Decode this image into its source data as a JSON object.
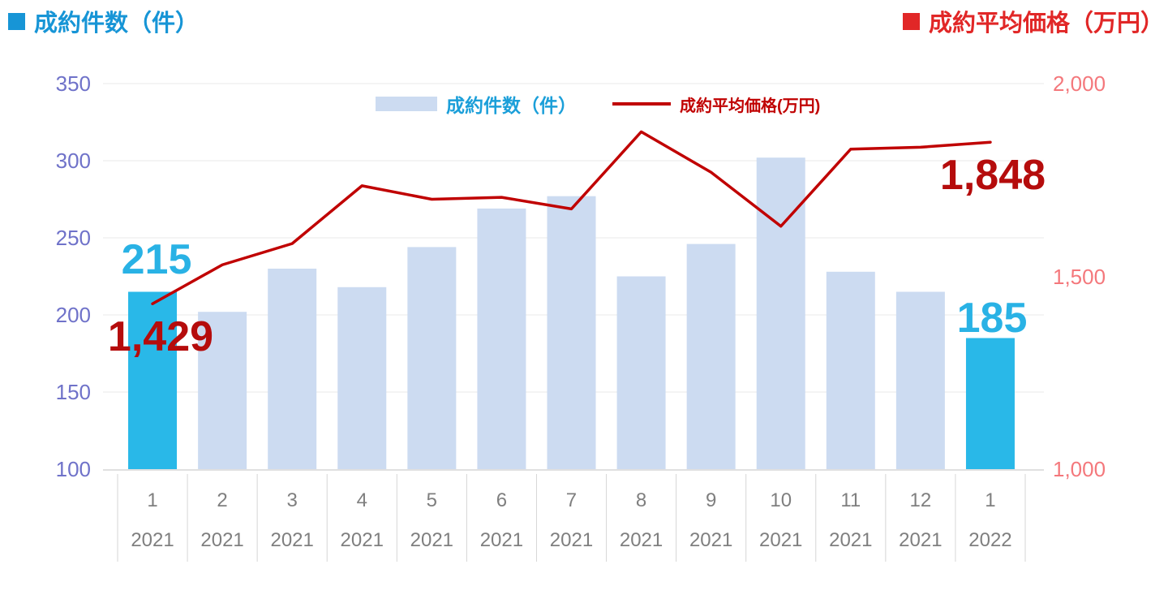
{
  "header": {
    "left_title": "成約件数（件）",
    "right_title": "成約平均価格（万円）"
  },
  "legend": {
    "bar_label": "成約件数（件）",
    "line_label": "成約平均価格(万円)"
  },
  "annotations": {
    "bar_first": "215",
    "line_first": "1,429",
    "bar_last": "185",
    "line_last": "1,848"
  },
  "colors": {
    "bar": "#ccdbf1",
    "bar_highlight": "#29b8e8",
    "line": "#c00000",
    "bar_title": "#1795d6",
    "line_title": "#e12727",
    "legend_bar_text": "#1b9fd9",
    "bar_value_label": "#29b2e5",
    "line_value_label": "#b50c0c",
    "left_axis_text": "#6f72c9",
    "right_axis_text": "#f4787c",
    "x_label": "#7f7f7f",
    "grid": "#e8e8e8",
    "axis_line": "#d6d6d6"
  },
  "chart_data": {
    "type": "combo",
    "title": "成約件数（件）／成約平均価格（万円）",
    "legend_position": "top-center",
    "grid": true,
    "categories": [
      {
        "month": "1",
        "year": "2021"
      },
      {
        "month": "2",
        "year": "2021"
      },
      {
        "month": "3",
        "year": "2021"
      },
      {
        "month": "4",
        "year": "2021"
      },
      {
        "month": "5",
        "year": "2021"
      },
      {
        "month": "6",
        "year": "2021"
      },
      {
        "month": "7",
        "year": "2021"
      },
      {
        "month": "8",
        "year": "2021"
      },
      {
        "month": "9",
        "year": "2021"
      },
      {
        "month": "10",
        "year": "2021"
      },
      {
        "month": "11",
        "year": "2021"
      },
      {
        "month": "12",
        "year": "2021"
      },
      {
        "month": "1",
        "year": "2022"
      }
    ],
    "series": [
      {
        "name": "成約件数（件）",
        "type": "bar",
        "axis": "left",
        "values": [
          215,
          202,
          230,
          218,
          244,
          269,
          277,
          225,
          246,
          302,
          228,
          215,
          185
        ],
        "highlight_indices": [
          0,
          12
        ]
      },
      {
        "name": "成約平均価格(万円)",
        "type": "line",
        "axis": "right",
        "values": [
          1429,
          1530,
          1585,
          1735,
          1700,
          1705,
          1675,
          1875,
          1770,
          1630,
          1830,
          1835,
          1848
        ]
      }
    ],
    "left_axis": {
      "min": 100,
      "max": 350,
      "ticks": [
        {
          "v": 350,
          "label": "350"
        },
        {
          "v": 300,
          "label": "300"
        },
        {
          "v": 250,
          "label": "250"
        },
        {
          "v": 200,
          "label": "200"
        },
        {
          "v": 150,
          "label": "150"
        },
        {
          "v": 100,
          "label": "100"
        }
      ]
    },
    "right_axis": {
      "min": 1000,
      "max": 2000,
      "ticks": [
        {
          "v": 2000,
          "label": "2,000"
        },
        {
          "v": 1500,
          "label": "1,500"
        },
        {
          "v": 1000,
          "label": "1,000"
        }
      ]
    }
  }
}
